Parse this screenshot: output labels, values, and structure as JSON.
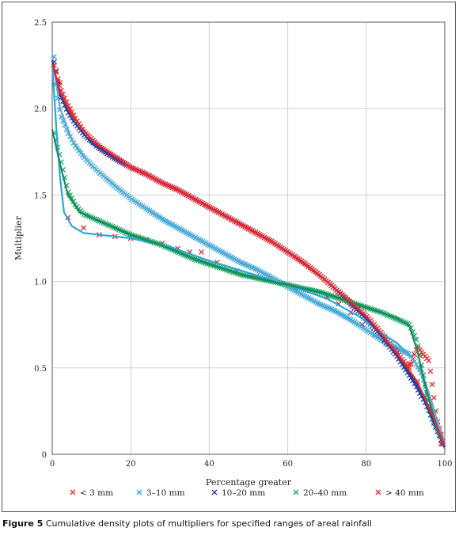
{
  "caption": {
    "label": "Figure 5",
    "text": "Cumulative density plots of multipliers for specified ranges of areal rainfall"
  },
  "chart_data": {
    "type": "scatter",
    "title": "",
    "xlabel": "Percentage greater",
    "ylabel": "Multiplier",
    "xlim": [
      0,
      100
    ],
    "ylim": [
      0,
      2.5
    ],
    "x_ticks": [
      0,
      20,
      40,
      60,
      80,
      100
    ],
    "y_ticks": [
      0,
      0.5,
      1.0,
      1.5,
      2.0,
      2.5
    ],
    "y_tick_labels": [
      "0",
      "0.5",
      "1.0",
      "1.5",
      "2.0",
      "2.5"
    ],
    "grid": true,
    "legend_position": "bottom",
    "series": [
      {
        "name": "< 3 mm",
        "color": "#e8282b",
        "points": [
          [
            1,
            2.22
          ],
          [
            2,
            2.15
          ],
          [
            4,
            1.37
          ],
          [
            8,
            1.31
          ],
          [
            12,
            1.27
          ],
          [
            16,
            1.26
          ],
          [
            20,
            1.25
          ],
          [
            24,
            1.24
          ],
          [
            28,
            1.22
          ],
          [
            32,
            1.19
          ],
          [
            35,
            1.17
          ],
          [
            38,
            1.17
          ],
          [
            42,
            1.11
          ],
          [
            47,
            1.06
          ],
          [
            52,
            1.03
          ],
          [
            57,
            1.0
          ],
          [
            60,
            0.98
          ],
          [
            65,
            0.95
          ],
          [
            70,
            0.91
          ],
          [
            73,
            0.87
          ],
          [
            76,
            0.82
          ],
          [
            79,
            0.75
          ],
          [
            82,
            0.69
          ],
          [
            85,
            0.64
          ],
          [
            88,
            0.59
          ],
          [
            91,
            0.52
          ],
          [
            93,
            0.42
          ],
          [
            95,
            0.33
          ],
          [
            97,
            0.22
          ],
          [
            99,
            0.06
          ]
        ]
      },
      {
        "name": "3–10 mm",
        "color": "#29a8e0",
        "points": [
          [
            0.5,
            2.3
          ],
          [
            1,
            2.12
          ],
          [
            2,
            1.97
          ],
          [
            4,
            1.86
          ],
          [
            6,
            1.78
          ],
          [
            8,
            1.72
          ],
          [
            12,
            1.63
          ],
          [
            16,
            1.55
          ],
          [
            20,
            1.48
          ],
          [
            24,
            1.42
          ],
          [
            28,
            1.36
          ],
          [
            32,
            1.31
          ],
          [
            36,
            1.26
          ],
          [
            40,
            1.21
          ],
          [
            44,
            1.16
          ],
          [
            48,
            1.11
          ],
          [
            52,
            1.07
          ],
          [
            56,
            1.02
          ],
          [
            60,
            0.97
          ],
          [
            64,
            0.92
          ],
          [
            68,
            0.87
          ],
          [
            72,
            0.83
          ],
          [
            76,
            0.78
          ],
          [
            80,
            0.72
          ],
          [
            84,
            0.66
          ],
          [
            88,
            0.61
          ],
          [
            91,
            0.58
          ],
          [
            94,
            0.48
          ],
          [
            96,
            0.3
          ],
          [
            98,
            0.18
          ],
          [
            99.5,
            0.08
          ]
        ]
      },
      {
        "name": "10–20 mm",
        "color": "#1f3fa0",
        "points": [
          [
            0.5,
            2.27
          ],
          [
            2,
            2.08
          ],
          [
            4,
            1.98
          ],
          [
            6,
            1.91
          ],
          [
            8,
            1.85
          ],
          [
            12,
            1.77
          ],
          [
            16,
            1.71
          ],
          [
            20,
            1.66
          ],
          [
            24,
            1.62
          ],
          [
            28,
            1.57
          ],
          [
            32,
            1.53
          ],
          [
            36,
            1.48
          ],
          [
            40,
            1.43
          ],
          [
            44,
            1.38
          ],
          [
            48,
            1.33
          ],
          [
            52,
            1.28
          ],
          [
            56,
            1.23
          ],
          [
            60,
            1.17
          ],
          [
            64,
            1.11
          ],
          [
            68,
            1.04
          ],
          [
            72,
            0.96
          ],
          [
            76,
            0.87
          ],
          [
            80,
            0.78
          ],
          [
            84,
            0.68
          ],
          [
            88,
            0.56
          ],
          [
            92,
            0.42
          ],
          [
            95,
            0.3
          ],
          [
            98,
            0.14
          ],
          [
            99.5,
            0.06
          ]
        ]
      },
      {
        "name": "20–40 mm",
        "color": "#1aa56a",
        "points": [
          [
            0.5,
            1.86
          ],
          [
            2,
            1.72
          ],
          [
            4,
            1.52
          ],
          [
            6,
            1.44
          ],
          [
            8,
            1.39
          ],
          [
            12,
            1.35
          ],
          [
            16,
            1.31
          ],
          [
            20,
            1.27
          ],
          [
            24,
            1.24
          ],
          [
            28,
            1.21
          ],
          [
            32,
            1.17
          ],
          [
            36,
            1.13
          ],
          [
            40,
            1.1
          ],
          [
            44,
            1.07
          ],
          [
            48,
            1.04
          ],
          [
            52,
            1.02
          ],
          [
            56,
            1.0
          ],
          [
            60,
            0.98
          ],
          [
            64,
            0.96
          ],
          [
            68,
            0.94
          ],
          [
            72,
            0.91
          ],
          [
            76,
            0.88
          ],
          [
            80,
            0.85
          ],
          [
            84,
            0.82
          ],
          [
            88,
            0.78
          ],
          [
            91,
            0.75
          ],
          [
            93,
            0.65
          ],
          [
            95,
            0.4
          ],
          [
            97,
            0.2
          ],
          [
            99,
            0.1
          ]
        ]
      },
      {
        "name": "> 40 mm",
        "color": "#e8282b",
        "points": [
          [
            0.5,
            2.25
          ],
          [
            2,
            2.12
          ],
          [
            4,
            2.02
          ],
          [
            6,
            1.94
          ],
          [
            8,
            1.87
          ],
          [
            12,
            1.78
          ],
          [
            16,
            1.72
          ],
          [
            20,
            1.66
          ],
          [
            24,
            1.62
          ],
          [
            28,
            1.57
          ],
          [
            32,
            1.53
          ],
          [
            36,
            1.48
          ],
          [
            40,
            1.43
          ],
          [
            44,
            1.38
          ],
          [
            48,
            1.33
          ],
          [
            52,
            1.28
          ],
          [
            56,
            1.23
          ],
          [
            60,
            1.17
          ],
          [
            64,
            1.11
          ],
          [
            68,
            1.04
          ],
          [
            72,
            0.96
          ],
          [
            76,
            0.88
          ],
          [
            80,
            0.8
          ],
          [
            84,
            0.7
          ],
          [
            88,
            0.58
          ],
          [
            91,
            0.5
          ],
          [
            93,
            0.62
          ],
          [
            96,
            0.54
          ],
          [
            98,
            0.2
          ],
          [
            99.5,
            0.08
          ]
        ]
      }
    ],
    "fit_curves": [
      {
        "series": "< 3 mm",
        "color": "#29a8e0",
        "points": [
          [
            0,
            2.25
          ],
          [
            1,
            1.9
          ],
          [
            2,
            1.6
          ],
          [
            3,
            1.4
          ],
          [
            5,
            1.32
          ],
          [
            8,
            1.28
          ],
          [
            12,
            1.27
          ],
          [
            20,
            1.25
          ],
          [
            30,
            1.2
          ],
          [
            40,
            1.12
          ],
          [
            50,
            1.05
          ],
          [
            60,
            0.98
          ],
          [
            70,
            0.9
          ],
          [
            78,
            0.8
          ],
          [
            84,
            0.7
          ],
          [
            88,
            0.64
          ],
          [
            92,
            0.55
          ],
          [
            95,
            0.42
          ],
          [
            97,
            0.28
          ],
          [
            99,
            0.1
          ],
          [
            100,
            0.03
          ]
        ]
      },
      {
        "series": "3–10 mm",
        "color": "#6aa7c8",
        "points": [
          [
            0,
            2.3
          ],
          [
            2,
            2.0
          ],
          [
            5,
            1.82
          ],
          [
            10,
            1.67
          ],
          [
            20,
            1.48
          ],
          [
            30,
            1.34
          ],
          [
            40,
            1.21
          ],
          [
            50,
            1.09
          ],
          [
            60,
            0.97
          ],
          [
            70,
            0.85
          ],
          [
            80,
            0.72
          ],
          [
            88,
            0.62
          ],
          [
            92,
            0.55
          ],
          [
            95,
            0.42
          ],
          [
            98,
            0.2
          ],
          [
            100,
            0.05
          ]
        ]
      },
      {
        "series": "10–20 mm",
        "color": "#1f3fa0",
        "points": [
          [
            0,
            2.28
          ],
          [
            2,
            2.08
          ],
          [
            5,
            1.94
          ],
          [
            10,
            1.8
          ],
          [
            20,
            1.66
          ],
          [
            30,
            1.55
          ],
          [
            40,
            1.43
          ],
          [
            50,
            1.31
          ],
          [
            60,
            1.17
          ],
          [
            70,
            1.0
          ],
          [
            80,
            0.79
          ],
          [
            88,
            0.57
          ],
          [
            93,
            0.4
          ],
          [
            97,
            0.2
          ],
          [
            100,
            0.04
          ]
        ]
      },
      {
        "series": "20–40 mm",
        "color": "#1a8a55",
        "points": [
          [
            0,
            1.88
          ],
          [
            2,
            1.68
          ],
          [
            4,
            1.5
          ],
          [
            7,
            1.4
          ],
          [
            12,
            1.35
          ],
          [
            20,
            1.27
          ],
          [
            30,
            1.19
          ],
          [
            40,
            1.1
          ],
          [
            50,
            1.03
          ],
          [
            60,
            0.98
          ],
          [
            70,
            0.93
          ],
          [
            80,
            0.85
          ],
          [
            88,
            0.79
          ],
          [
            91,
            0.74
          ],
          [
            93,
            0.6
          ],
          [
            95,
            0.4
          ],
          [
            98,
            0.15
          ],
          [
            100,
            0.05
          ]
        ]
      },
      {
        "series": "> 40 mm",
        "color": "#e8282b",
        "points": [
          [
            0,
            2.26
          ],
          [
            2,
            2.1
          ],
          [
            5,
            1.96
          ],
          [
            10,
            1.82
          ],
          [
            20,
            1.66
          ],
          [
            30,
            1.55
          ],
          [
            40,
            1.43
          ],
          [
            50,
            1.31
          ],
          [
            60,
            1.17
          ],
          [
            70,
            1.0
          ],
          [
            80,
            0.8
          ],
          [
            88,
            0.58
          ],
          [
            93,
            0.42
          ],
          [
            97,
            0.22
          ],
          [
            100,
            0.05
          ]
        ]
      }
    ]
  }
}
